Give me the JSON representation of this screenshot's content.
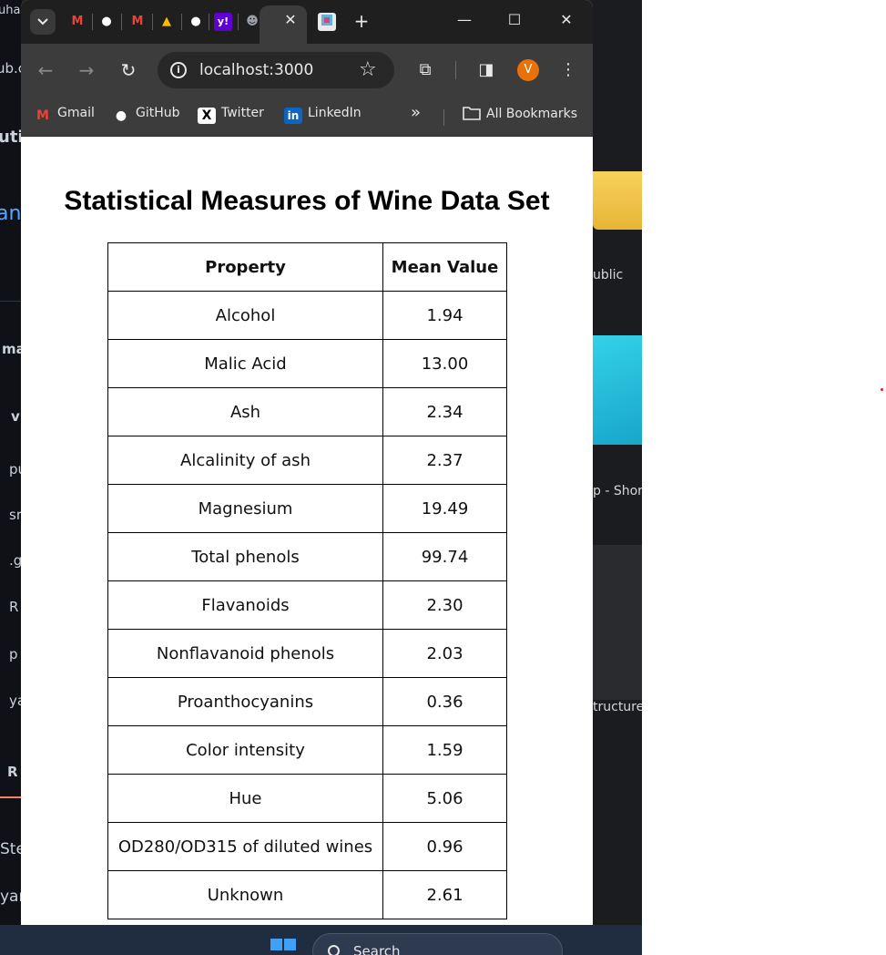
{
  "background": {
    "left_fragments": [
      "uhar",
      "ub.c",
      "uti",
      "an",
      "ma",
      "v",
      "pu",
      "sr",
      ".g",
      "R",
      "p",
      "ya",
      "R",
      "Ste",
      "yar"
    ],
    "right_fragments": [
      "ublic",
      "p - Short",
      "tructure."
    ]
  },
  "taskbar": {
    "search_label": "Search"
  },
  "browser": {
    "tabs": [
      {
        "icon": "gmail-icon",
        "glyph": "M",
        "color": "#ea4335"
      },
      {
        "icon": "github-icon",
        "glyph": "●",
        "color": "#ffffff"
      },
      {
        "icon": "gmail-icon",
        "glyph": "M",
        "color": "#ea4335"
      },
      {
        "icon": "google-drive-icon",
        "glyph": "▲",
        "color": "#fbbc04"
      },
      {
        "icon": "github-icon",
        "glyph": "●",
        "color": "#ffffff"
      },
      {
        "icon": "yahoo-icon",
        "glyph": "y!",
        "color": "#6001d2"
      },
      {
        "icon": "avatar-tab-icon",
        "glyph": "☻",
        "color": "#9aa0a6"
      }
    ],
    "url": "localhost:3000",
    "avatar_letter": "V",
    "bookmarks": [
      {
        "label": "Gmail",
        "icon": "gmail-icon"
      },
      {
        "label": "GitHub",
        "icon": "github-icon"
      },
      {
        "label": "Twitter",
        "icon": "x-twitter-icon"
      },
      {
        "label": "LinkedIn",
        "icon": "linkedin-icon"
      }
    ],
    "overflow_glyph": "»",
    "all_bookmarks_label": "All Bookmarks"
  },
  "page": {
    "title": "Statistical Measures of Wine Data Set",
    "table": {
      "headers": [
        "Property",
        "Mean Value"
      ],
      "rows": [
        [
          "Alcohol",
          "1.94"
        ],
        [
          "Malic Acid",
          "13.00"
        ],
        [
          "Ash",
          "2.34"
        ],
        [
          "Alcalinity of ash",
          "2.37"
        ],
        [
          "Magnesium",
          "19.49"
        ],
        [
          "Total phenols",
          "99.74"
        ],
        [
          "Flavanoids",
          "2.30"
        ],
        [
          "Nonflavanoid phenols",
          "2.03"
        ],
        [
          "Proanthocyanins",
          "0.36"
        ],
        [
          "Color intensity",
          "1.59"
        ],
        [
          "Hue",
          "5.06"
        ],
        [
          "OD280/OD315 of diluted wines",
          "0.96"
        ],
        [
          "Unknown",
          "2.61"
        ]
      ]
    }
  },
  "colors": {
    "accent": "#e8710a",
    "titlebar": "#1f1f1f",
    "toolbar": "#3c3c3c",
    "taskbar": "#202c40"
  }
}
